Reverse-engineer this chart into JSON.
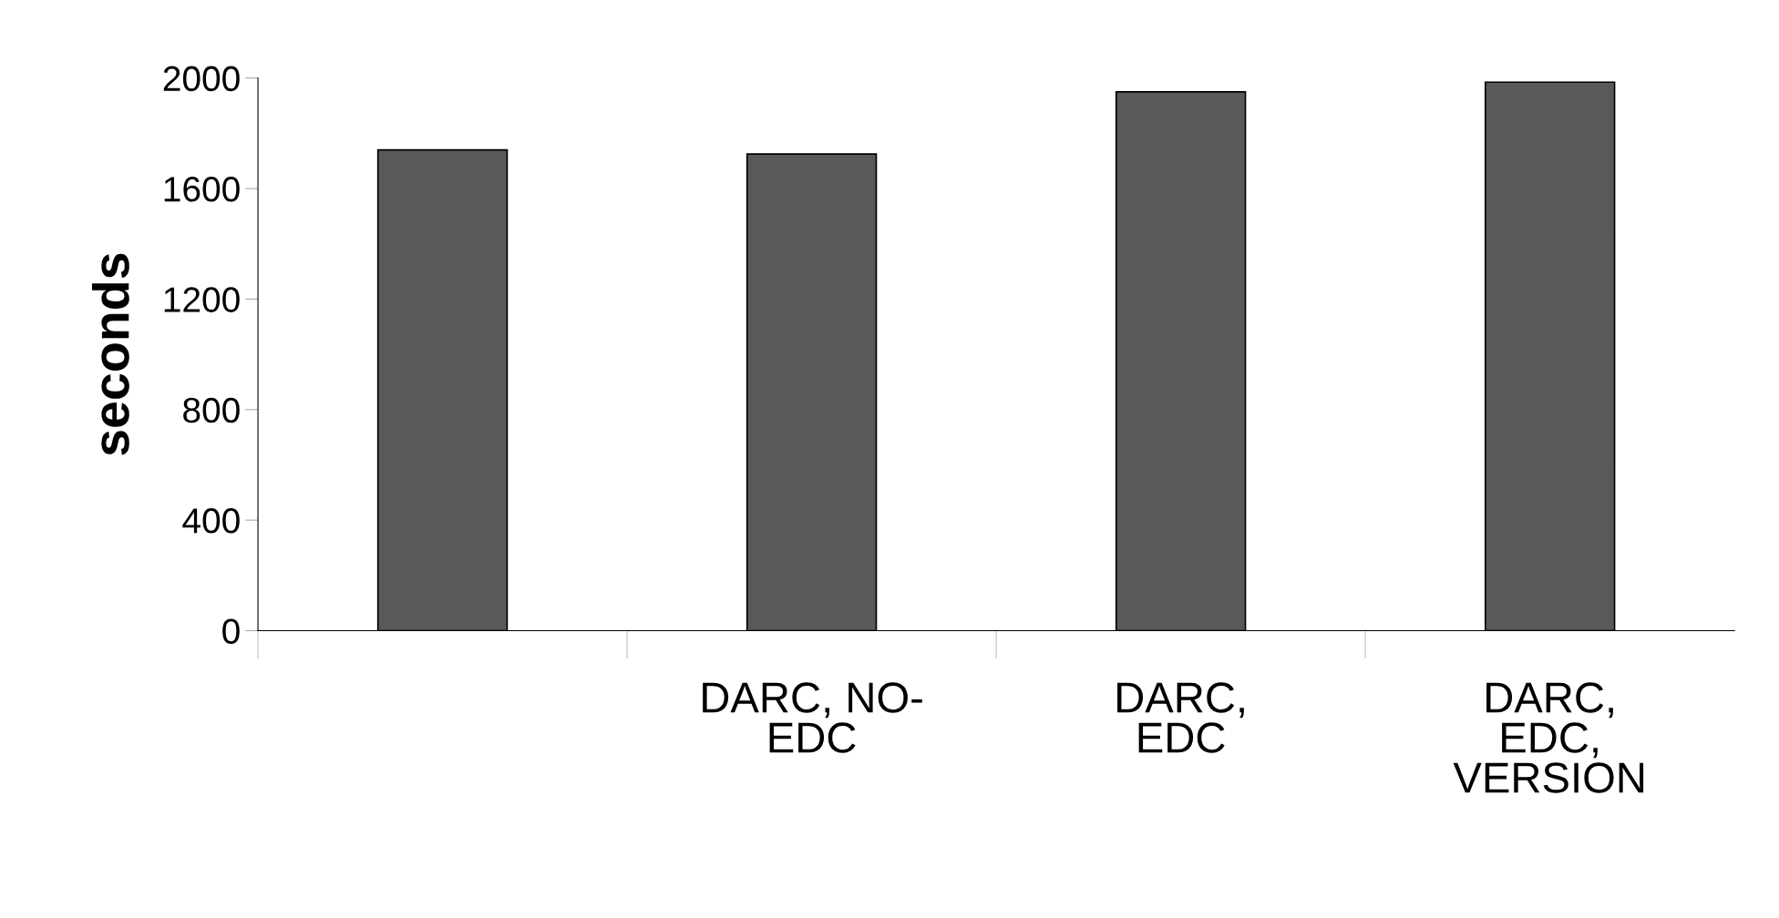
{
  "chart_data": {
    "type": "bar",
    "ylabel": "seconds",
    "categories": [
      null,
      "DARC, NO-\nEDC",
      "DARC,\nEDC",
      "DARC,\nEDC,\nVERSION"
    ],
    "values": [
      1740,
      1725,
      1950,
      1985
    ],
    "color": "#595959",
    "ylim": [
      0,
      2000
    ],
    "yticks": [
      0,
      400,
      800,
      1200,
      1600,
      2000
    ],
    "grid": false,
    "legend": false
  }
}
